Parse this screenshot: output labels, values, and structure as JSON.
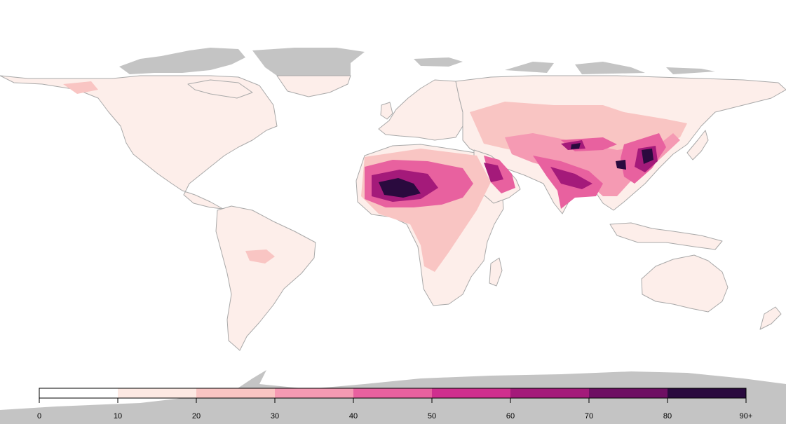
{
  "legend": {
    "ticks": [
      "0",
      "10",
      "20",
      "30",
      "40",
      "50",
      "60",
      "70",
      "80",
      "90+"
    ],
    "bin_colors": [
      "#ffffff",
      "#fde9e3",
      "#f9c5c3",
      "#f59ab3",
      "#e8619f",
      "#cf2f8e",
      "#a41a7a",
      "#6e0f63",
      "#2a0a3e"
    ]
  },
  "colors": {
    "land_base": "#fdeeea",
    "border": "#a9a9a9",
    "polar": "#c4c4c4"
  }
}
